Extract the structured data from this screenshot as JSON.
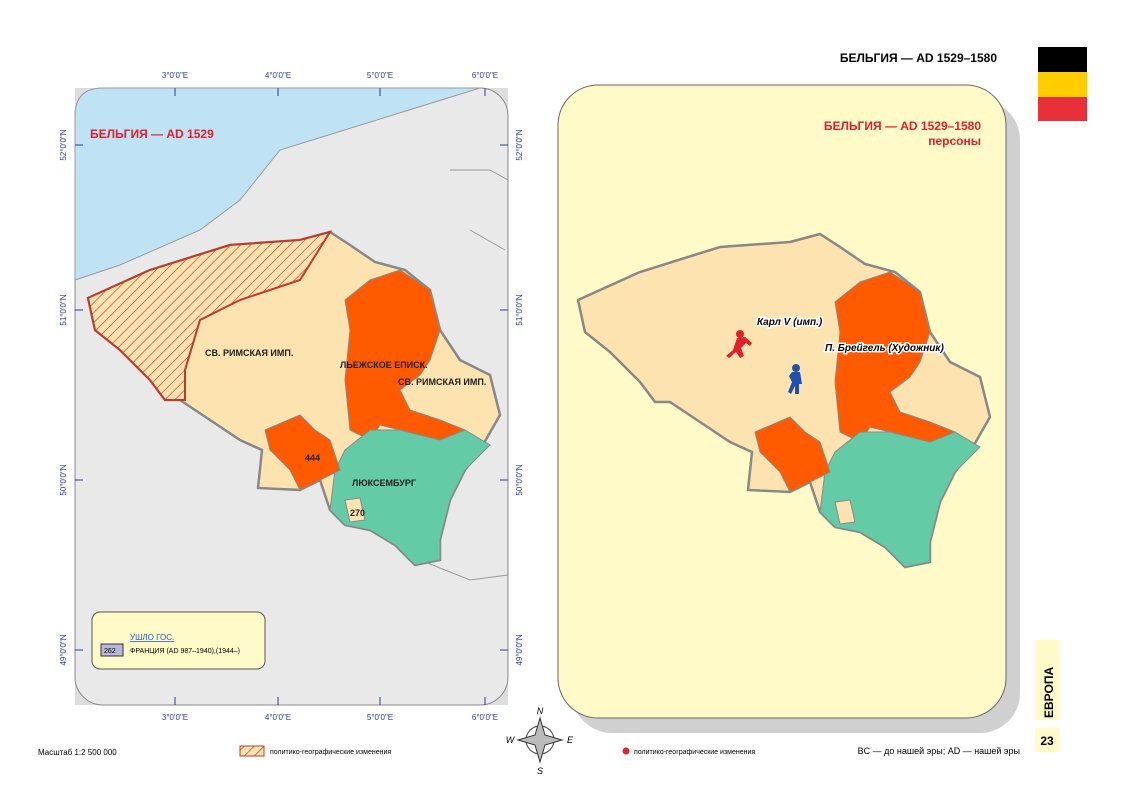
{
  "header": {
    "title": "БЕЛЬГИЯ — AD 1529–1580"
  },
  "left_map": {
    "title": "БЕЛЬГИЯ — AD 1529",
    "labels": [
      "СВ. РИМСКАЯ ИМП.",
      "ЛЬЕЖСКОЕ ЕПИСК.",
      "СВ. РИМСКАЯ ИМП.",
      "ЛЮКСЕМБУРГ",
      "444",
      "270"
    ],
    "lon_ticks": [
      "3°0'0\"E",
      "4°0'0\"E",
      "5°0'0\"E",
      "6°0'0\"E"
    ],
    "lat_ticks": [
      "52°0'0\"N",
      "51°0'0\"N",
      "50°0'0\"N",
      "49°0'0\"N"
    ],
    "legend": {
      "heading": "УШЛО ГОС.",
      "code": "262",
      "item": "ФРАНЦИЯ  (AD 987–1940),(1944–)"
    }
  },
  "right_map": {
    "title": "БЕЛЬГИЯ — AD 1529–1580",
    "subtitle": "персоны",
    "persons": [
      "Карл V (имп.)",
      "П. Брейгель (Художник)"
    ]
  },
  "compass": [
    "N",
    "W",
    "E",
    "S"
  ],
  "footer": {
    "scale": "Масштаб 1:2 500 000",
    "legend_left": "политико-географические изменения",
    "legend_right": "политико-географические изменения",
    "note": "BC — до нашей эры; AD — нашей эры",
    "page": "23",
    "section": "ЕВРОПА"
  }
}
